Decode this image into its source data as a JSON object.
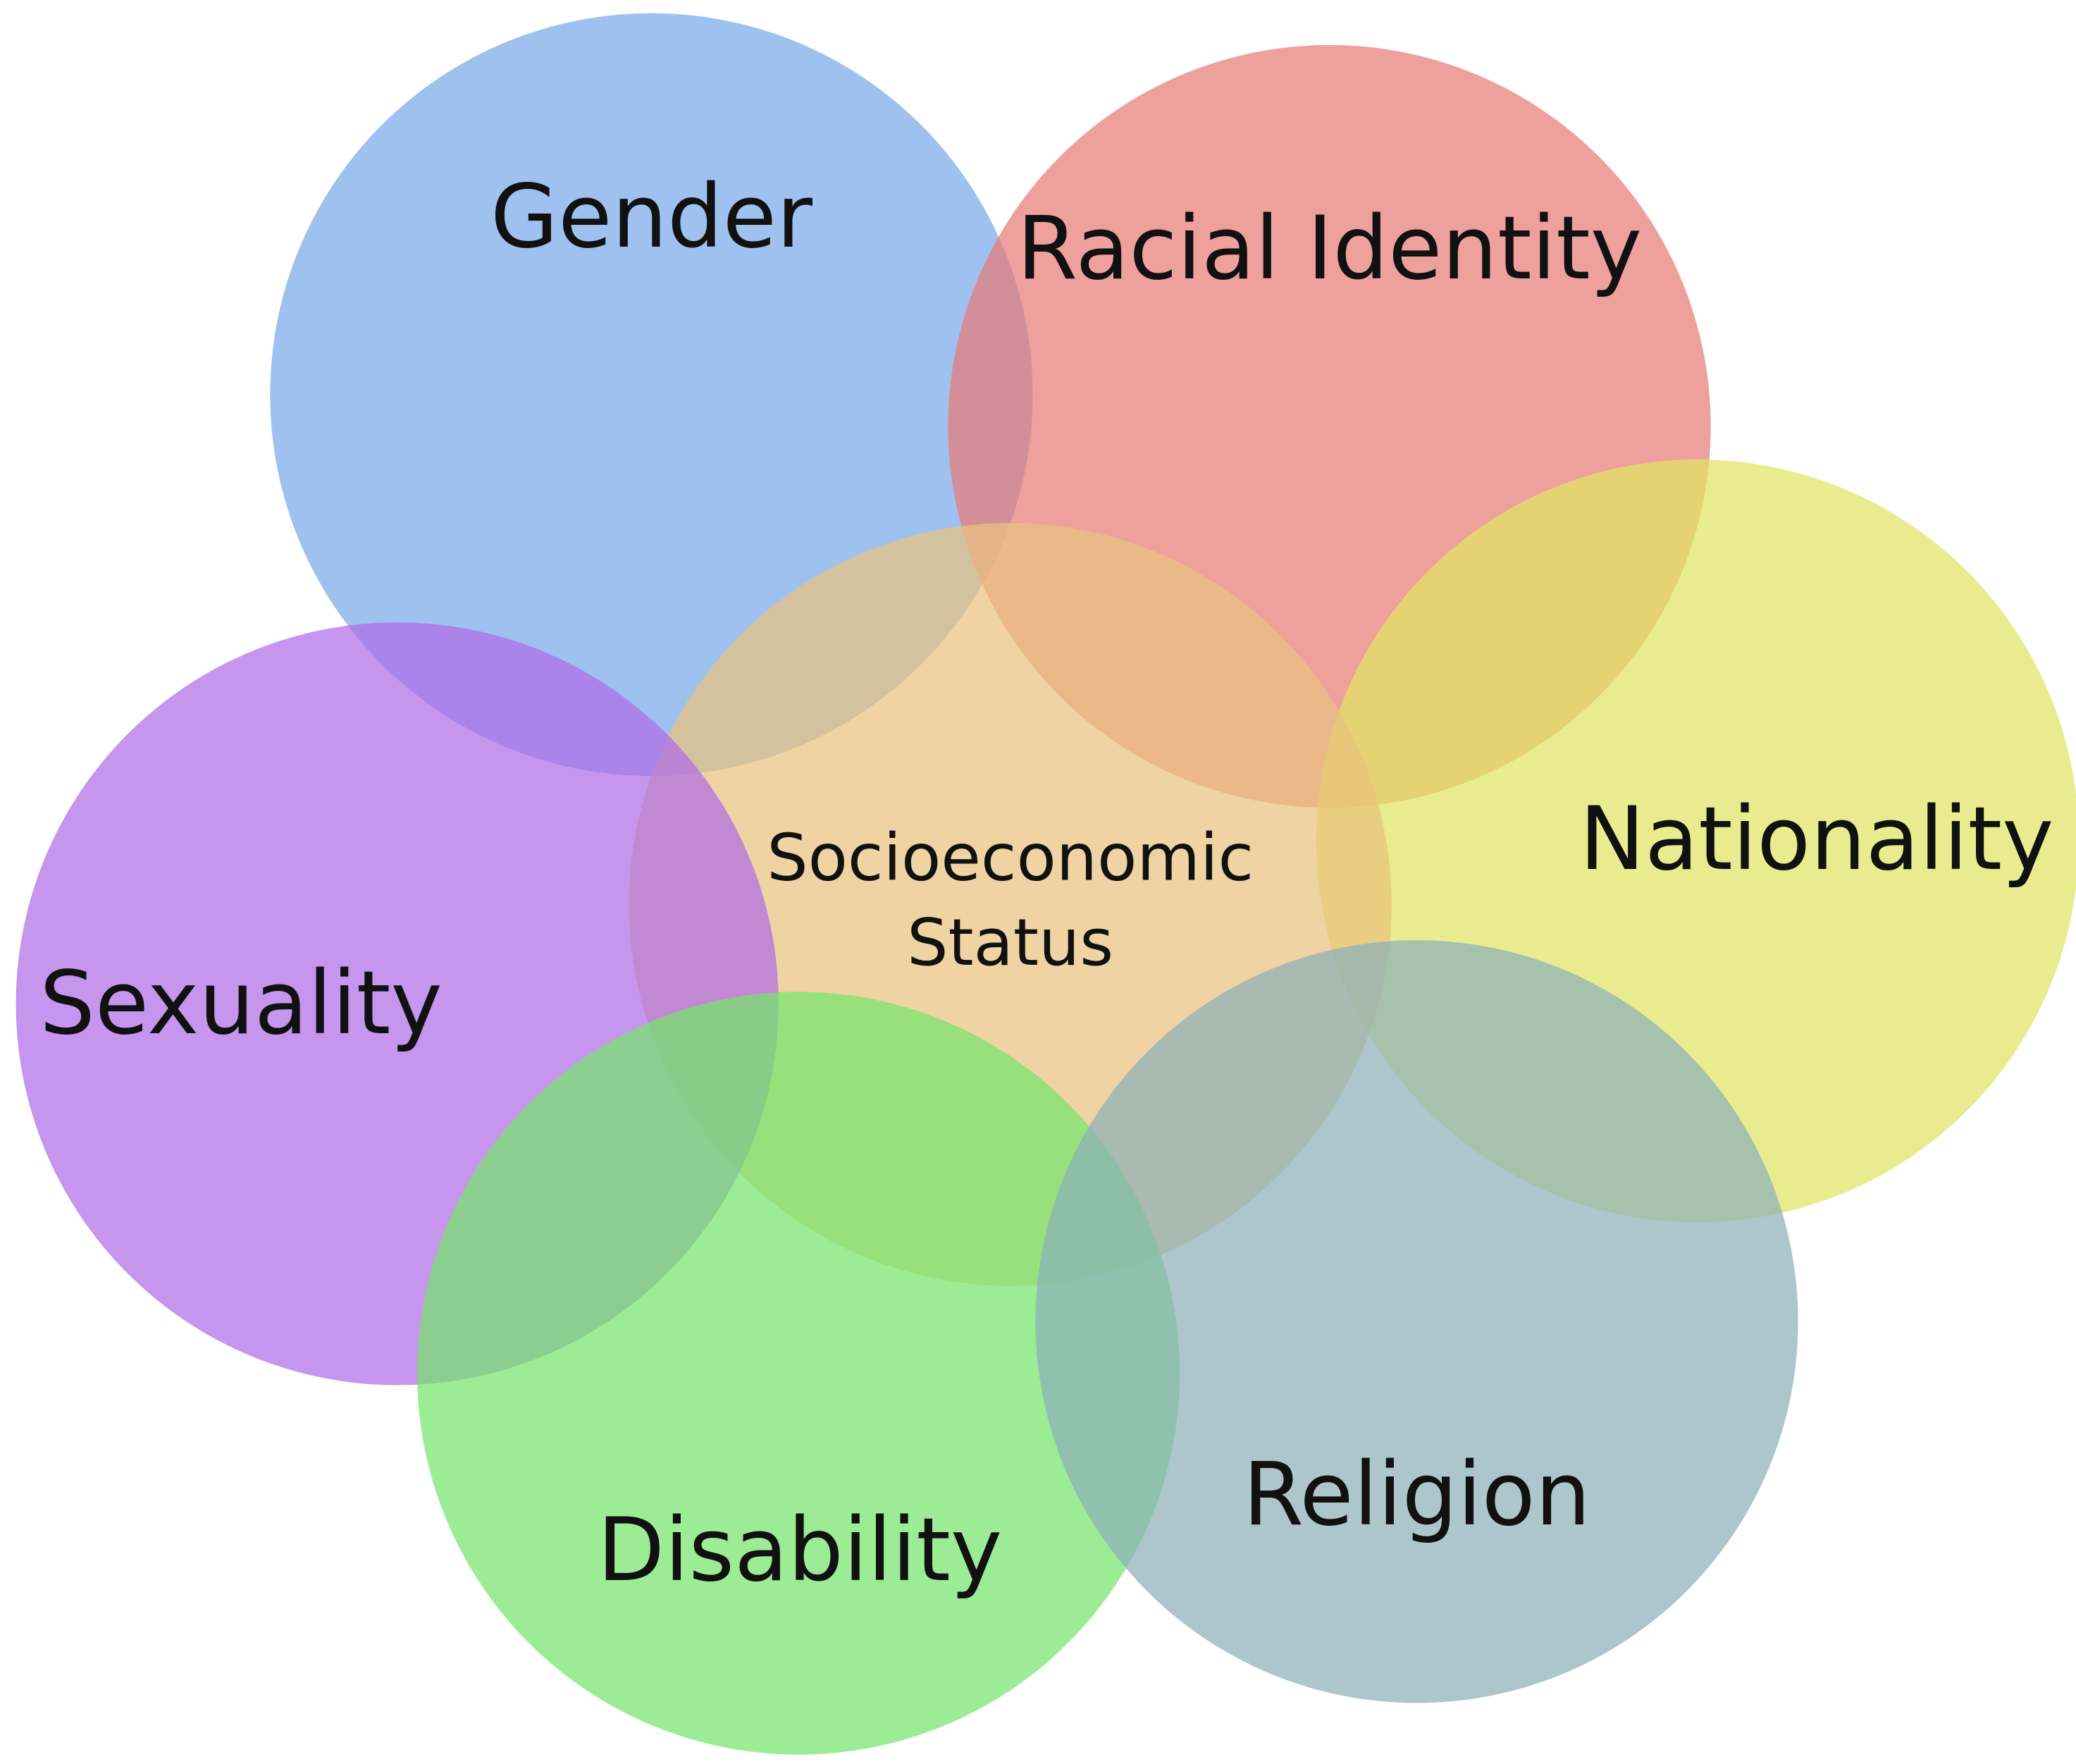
{
  "nodes": [
    {
      "lines": [
        "Gender"
      ],
      "color": "#7aa9ea"
    },
    {
      "lines": [
        "Racial Identity"
      ],
      "color": "#e77b77"
    },
    {
      "lines": [
        "Nationality"
      ],
      "color": "#e0e463"
    },
    {
      "lines": [
        "Socioeconomic",
        "Status"
      ],
      "color": "#e9c27e"
    },
    {
      "lines": [
        "Sexuality"
      ],
      "color": "#b06ce6"
    },
    {
      "lines": [
        "Disability"
      ],
      "color": "#76e46c"
    },
    {
      "lines": [
        "Religion"
      ],
      "color": "#8cb0b8"
    }
  ]
}
